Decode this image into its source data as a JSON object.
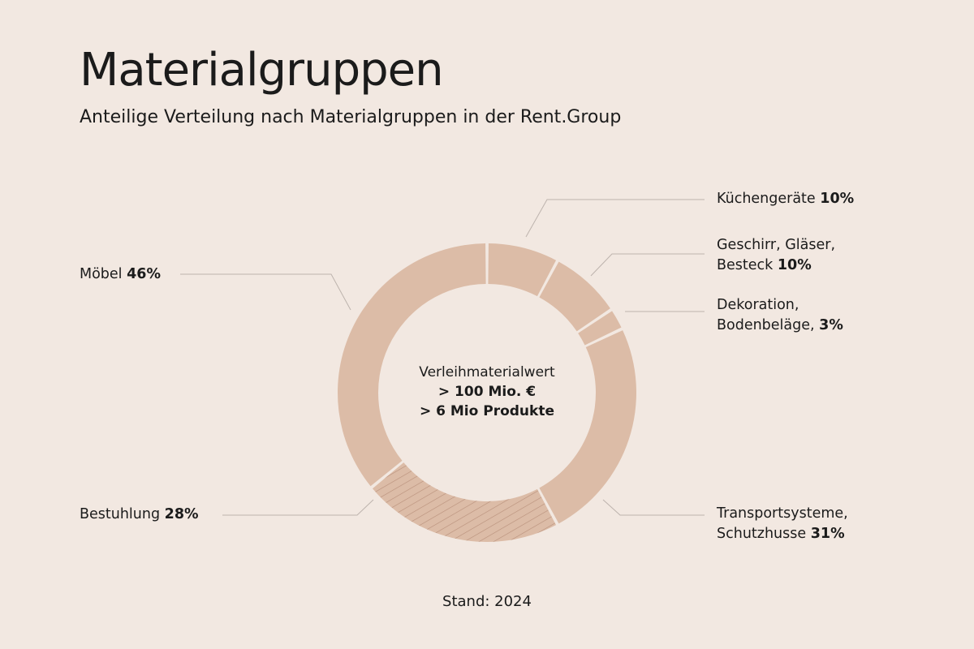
{
  "title": "Materialgruppen",
  "subtitle": "Anteilige Verteilung nach Materialgruppen in der Rent.Group",
  "center": {
    "line1": "Verleihmaterialwert",
    "line2": "> 100 Mio. €",
    "line3": "> 6 Mio Produkte"
  },
  "footer": "Stand: 2024",
  "colors": {
    "background": "#f2e8e1",
    "segment": "#dcbca7",
    "hatch": "#b88f7a",
    "leader": "#bdb3ad"
  },
  "chart_data": {
    "type": "pie",
    "style": "donut",
    "slices": [
      {
        "label": "Küchengeräte",
        "value": 10,
        "value_label": "10%",
        "hatched": false
      },
      {
        "label": "Geschirr, Gläser, Besteck",
        "value": 10,
        "value_label": "10%",
        "hatched": false
      },
      {
        "label": "Dekoration, Bodenbeläge,",
        "value": 3,
        "value_label": "3%",
        "hatched": false
      },
      {
        "label": "Transportsysteme, Schutzhusse",
        "value": 31,
        "value_label": "31%",
        "hatched": false
      },
      {
        "label": "Bestuhlung",
        "value": 28,
        "value_label": "28%",
        "hatched": true
      },
      {
        "label": "Möbel",
        "value": 46,
        "value_label": "46%",
        "hatched": false
      }
    ],
    "labels": {
      "kuechen": {
        "text": "Küchengeräte",
        "pct": "10%"
      },
      "geschirr": {
        "line1": "Geschirr, Gläser,",
        "line2": "Besteck",
        "pct": "10%"
      },
      "deko": {
        "line1": "Dekoration,",
        "line2": "Bodenbeläge,",
        "pct": "3%"
      },
      "transport": {
        "line1": "Transportsysteme,",
        "line2": "Schutzhusse",
        "pct": "31%"
      },
      "bestuhlung": {
        "text": "Bestuhlung",
        "pct": "28%"
      },
      "moebel": {
        "text": "Möbel",
        "pct": "46%"
      }
    }
  }
}
